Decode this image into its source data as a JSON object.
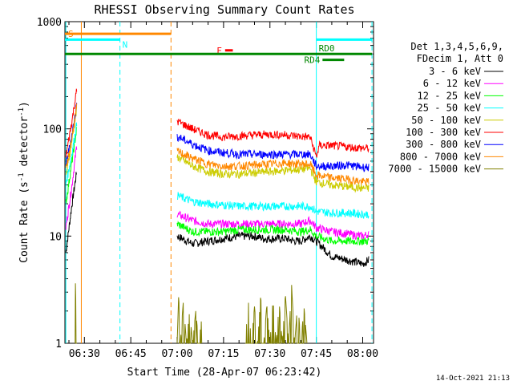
{
  "chart_data": {
    "type": "line",
    "title": "RHESSI Observing Summary Count Rates",
    "xlabel": "Start Time (28-Apr-07 06:23:42)",
    "ylabel": "Count Rate (s",
    "ylabel_sup": "-1",
    "ylabel_tail": " detector",
    "ylabel_sup2": "-1",
    "ylabel_end": ")",
    "y_scale": "log",
    "ylim": [
      1,
      1000
    ],
    "xlim_minutes": [
      383.7,
      483.5
    ],
    "y_ticks": [
      {
        "value": 1,
        "label": "1"
      },
      {
        "value": 10,
        "label": "10"
      },
      {
        "value": 100,
        "label": "100"
      },
      {
        "value": 1000,
        "label": "1000"
      }
    ],
    "x_ticks": [
      {
        "minute": 390,
        "label": "06:30"
      },
      {
        "minute": 405,
        "label": "06:45"
      },
      {
        "minute": 420,
        "label": "07:00"
      },
      {
        "minute": 435,
        "label": "07:15"
      },
      {
        "minute": 450,
        "label": "07:30"
      },
      {
        "minute": 465,
        "label": "07:45"
      },
      {
        "minute": 480,
        "label": "08:00"
      }
    ],
    "legend_header": [
      "Det 1,3,4,5,6,9,",
      "FDecim 1, Att 0"
    ],
    "series": [
      {
        "name": "3 - 6 keV",
        "color": "#000000",
        "segments": [
          [
            [
              384.0,
              7
            ],
            [
              386.0,
              20
            ],
            [
              387.5,
              40
            ]
          ],
          [
            [
              420.0,
              10
            ],
            [
              425.0,
              8.5
            ],
            [
              430.0,
              9
            ],
            [
              435,
              9.5
            ],
            [
              440,
              10
            ],
            [
              445,
              10
            ],
            [
              448,
              9.5
            ],
            [
              450.0,
              9.5
            ],
            [
              455,
              9.5
            ],
            [
              458,
              9
            ],
            [
              460.0,
              9
            ],
            [
              463,
              10
            ],
            [
              465.0,
              9
            ],
            [
              470.0,
              6.5
            ],
            [
              475,
              6
            ],
            [
              480.0,
              5.5
            ],
            [
              482.0,
              6
            ]
          ]
        ]
      },
      {
        "name": "6 - 12 keV",
        "color": "#ff00ff",
        "segments": [
          [
            [
              384.0,
              12
            ],
            [
              386.0,
              30
            ],
            [
              387.5,
              70
            ]
          ],
          [
            [
              420.0,
              16
            ],
            [
              425.0,
              14
            ],
            [
              430.0,
              13
            ],
            [
              435,
              13
            ],
            [
              440.0,
              13
            ],
            [
              445,
              13
            ],
            [
              450.0,
              13
            ],
            [
              455,
              13
            ],
            [
              460.0,
              13
            ],
            [
              463,
              14
            ],
            [
              465.0,
              12
            ],
            [
              470.0,
              11
            ],
            [
              475,
              10.5
            ],
            [
              480.0,
              10
            ],
            [
              482.0,
              10.5
            ]
          ]
        ]
      },
      {
        "name": "12 - 25 keV",
        "color": "#00ff00",
        "segments": [
          [
            [
              384.0,
              20
            ],
            [
              386.0,
              50
            ],
            [
              387.5,
              100
            ]
          ],
          [
            [
              420.0,
              13
            ],
            [
              425.0,
              11
            ],
            [
              430.0,
              11
            ],
            [
              435,
              11
            ],
            [
              440.0,
              11.5
            ],
            [
              445,
              11.5
            ],
            [
              450.0,
              11.5
            ],
            [
              455,
              11.5
            ],
            [
              460.0,
              11
            ],
            [
              463,
              11.5
            ],
            [
              465.0,
              10
            ],
            [
              470.0,
              9
            ],
            [
              475,
              9
            ],
            [
              480.0,
              9
            ],
            [
              482.0,
              9
            ]
          ]
        ]
      },
      {
        "name": "25 - 50 keV",
        "color": "#00ffff",
        "segments": [
          [
            [
              384.0,
              30
            ],
            [
              386.0,
              60
            ],
            [
              387.5,
              110
            ]
          ],
          [
            [
              420.0,
              24
            ],
            [
              425.0,
              21
            ],
            [
              430.0,
              20
            ],
            [
              435,
              19.5
            ],
            [
              440.0,
              19
            ],
            [
              445,
              19
            ],
            [
              450.0,
              19
            ],
            [
              455,
              19
            ],
            [
              460.0,
              19
            ],
            [
              463,
              19
            ],
            [
              465.0,
              17
            ],
            [
              470.0,
              16.5
            ],
            [
              475,
              16.5
            ],
            [
              480.0,
              16
            ],
            [
              482.0,
              16
            ]
          ]
        ]
      },
      {
        "name": "50 - 100 keV",
        "color": "#cccc00",
        "segments": [
          [
            [
              384.0,
              35
            ],
            [
              386.0,
              80
            ],
            [
              387.5,
              150
            ]
          ],
          [
            [
              420.0,
              55
            ],
            [
              425.0,
              45
            ],
            [
              430.0,
              40
            ],
            [
              435,
              38
            ],
            [
              440.0,
              38
            ],
            [
              445,
              39
            ],
            [
              450.0,
              40
            ],
            [
              455,
              41
            ],
            [
              460.0,
              42
            ],
            [
              463,
              43
            ],
            [
              465.0,
              32
            ],
            [
              470.0,
              30
            ],
            [
              475,
              29
            ],
            [
              480.0,
              28
            ],
            [
              482.0,
              28
            ]
          ]
        ]
      },
      {
        "name": "100 - 300 keV",
        "color": "#ff0000",
        "segments": [
          [
            [
              384.0,
              55
            ],
            [
              386.0,
              120
            ],
            [
              387.5,
              230
            ]
          ],
          [
            [
              420.0,
              118
            ],
            [
              425.0,
              100
            ],
            [
              430.0,
              88
            ],
            [
              435,
              84
            ],
            [
              440.0,
              86
            ],
            [
              445,
              88
            ],
            [
              450.0,
              89
            ],
            [
              455,
              88
            ],
            [
              460.0,
              85
            ],
            [
              463,
              84
            ],
            [
              465.0,
              55
            ],
            [
              466,
              70
            ],
            [
              470.0,
              70
            ],
            [
              475,
              68
            ],
            [
              480.0,
              66
            ],
            [
              482.0,
              66
            ]
          ]
        ]
      },
      {
        "name": "300 - 800 keV",
        "color": "#0000ff",
        "segments": [
          [
            [
              384.0,
              45
            ],
            [
              386.0,
              90
            ],
            [
              387.5,
              170
            ]
          ],
          [
            [
              420.0,
              85
            ],
            [
              425.0,
              72
            ],
            [
              430.0,
              63
            ],
            [
              435,
              60
            ],
            [
              440.0,
              58
            ],
            [
              445,
              58
            ],
            [
              450.0,
              58
            ],
            [
              455,
              58
            ],
            [
              460.0,
              58
            ],
            [
              463,
              58
            ],
            [
              465.0,
              45
            ],
            [
              470.0,
              45
            ],
            [
              475,
              46
            ],
            [
              480.0,
              44
            ],
            [
              482.0,
              44
            ]
          ]
        ]
      },
      {
        "name": "800 - 7000 keV",
        "color": "#ff8800",
        "segments": [
          [
            [
              384.0,
              40
            ],
            [
              386.0,
              85
            ],
            [
              387.5,
              160
            ]
          ],
          [
            [
              420.0,
              62
            ],
            [
              425.0,
              53
            ],
            [
              430.0,
              47
            ],
            [
              435,
              45
            ],
            [
              440.0,
              45
            ],
            [
              445,
              46
            ],
            [
              450.0,
              47
            ],
            [
              455,
              48
            ],
            [
              460.0,
              47
            ],
            [
              463,
              47
            ],
            [
              465.0,
              37
            ],
            [
              470.0,
              35
            ],
            [
              475,
              34
            ],
            [
              480.0,
              32
            ],
            [
              482.0,
              32
            ]
          ]
        ]
      },
      {
        "name": "7000 - 15000 keV",
        "color": "#808000",
        "segments": [
          [
            [
              387.0,
              1
            ],
            [
              387.0,
              5
            ],
            [
              387.5,
              1
            ]
          ],
          [
            [
              420.0,
              1
            ],
            [
              420.5,
              3
            ],
            [
              421,
              1
            ],
            [
              422,
              2.5
            ],
            [
              423,
              1
            ],
            [
              424,
              2
            ],
            [
              425,
              1
            ],
            [
              426,
              2
            ],
            [
              427,
              1
            ],
            [
              428,
              1.8
            ]
          ],
          [
            [
              442,
              1
            ],
            [
              443,
              2.5
            ],
            [
              444,
              1
            ],
            [
              445,
              2.2
            ],
            [
              446,
              1
            ],
            [
              447,
              2.8
            ],
            [
              448,
              1
            ],
            [
              449,
              2.3
            ],
            [
              450,
              1
            ],
            [
              451,
              2.6
            ],
            [
              452,
              1
            ],
            [
              453,
              2.4
            ],
            [
              454,
              1
            ],
            [
              455,
              2.9
            ],
            [
              456,
              1
            ],
            [
              457,
              3.5
            ],
            [
              458,
              1
            ],
            [
              459,
              2.5
            ],
            [
              460,
              1
            ],
            [
              461,
              2.2
            ],
            [
              462,
              1
            ]
          ]
        ]
      }
    ],
    "flag_lines": [
      {
        "label": "S",
        "color": "#ff8800",
        "y": 770,
        "x_range": [
          383.7,
          418.0
        ]
      },
      {
        "label": "N",
        "color": "#00ffff",
        "y": 680,
        "x_range": [
          383.7,
          401.5
        ]
      },
      {
        "label": "N",
        "color": "#00ffff",
        "y": 680,
        "x_range": [
          465.0,
          483.0
        ],
        "show_label": false
      },
      {
        "label": "F",
        "color": "#ff0000",
        "y": 540,
        "x_range": [
          435.5,
          438.0
        ]
      },
      {
        "label": "",
        "color": "#008800",
        "y": 500,
        "x_range": [
          383.7,
          483.0
        ]
      },
      {
        "label": "RD0",
        "color": "#008800",
        "y": 500,
        "x_range": [
          465.0,
          483.0
        ],
        "show_line": false
      },
      {
        "label": "RD4",
        "color": "#008800",
        "y": 440,
        "x_range": [
          467.0,
          474.0
        ]
      }
    ],
    "vertical_lines": [
      {
        "minute": 384.0,
        "color": "#00ffff",
        "style": "solid"
      },
      {
        "minute": 389.0,
        "color": "#ff8800",
        "style": "solid"
      },
      {
        "minute": 401.5,
        "color": "#00ffff",
        "style": "dashed"
      },
      {
        "minute": 418.0,
        "color": "#ff8800",
        "style": "dashed"
      },
      {
        "minute": 465.0,
        "color": "#00ffff",
        "style": "solid"
      },
      {
        "minute": 483.0,
        "color": "#00ffff",
        "style": "dashed"
      }
    ],
    "timestamp": "14-Oct-2021 21:13"
  }
}
